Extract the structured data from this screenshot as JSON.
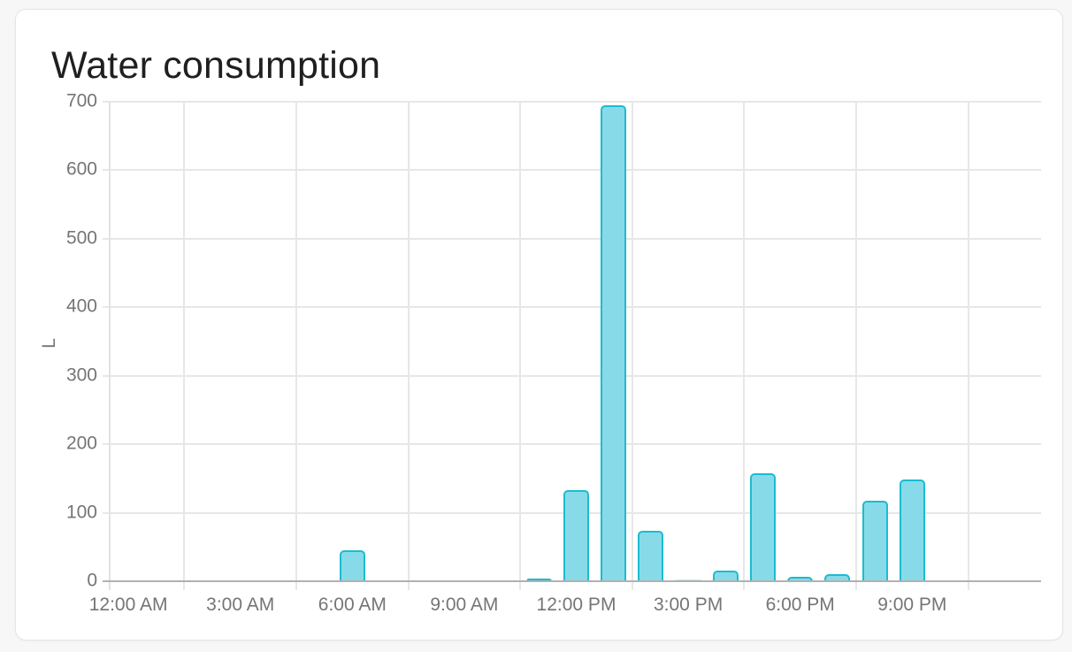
{
  "page": {
    "background": "#f7f7f7"
  },
  "card": {
    "title": "Water consumption"
  },
  "chart_data": {
    "type": "bar",
    "title": "Water consumption",
    "xlabel": "",
    "ylabel": "L",
    "unit": "L",
    "ylim": [
      0,
      700
    ],
    "y_ticks": [
      0,
      100,
      200,
      300,
      400,
      500,
      600,
      700
    ],
    "x_ticks": [
      {
        "hour": 0,
        "label": "12:00 AM"
      },
      {
        "hour": 3,
        "label": "3:00 AM"
      },
      {
        "hour": 6,
        "label": "6:00 AM"
      },
      {
        "hour": 9,
        "label": "9:00 AM"
      },
      {
        "hour": 12,
        "label": "12:00 PM"
      },
      {
        "hour": 15,
        "label": "3:00 PM"
      },
      {
        "hour": 18,
        "label": "6:00 PM"
      },
      {
        "hour": 21,
        "label": "9:00 PM"
      }
    ],
    "gridline_hours": [
      2,
      5,
      8,
      11,
      14,
      17,
      20,
      23
    ],
    "grid": true,
    "legend": "none",
    "categories": [
      0,
      1,
      2,
      3,
      4,
      5,
      6,
      7,
      8,
      9,
      10,
      11,
      12,
      13,
      14,
      15,
      16,
      17,
      18,
      19,
      20,
      21,
      22,
      23
    ],
    "series": [
      {
        "name": "Water consumption",
        "unit": "L",
        "values": [
          0,
          0,
          0,
          0,
          0,
          0,
          45,
          0,
          0,
          0,
          0,
          4,
          133,
          695,
          73,
          1.5,
          16,
          157,
          6,
          10,
          118,
          149,
          0,
          0
        ]
      }
    ],
    "colors": {
      "bar_fill": "#87dbe8",
      "bar_border": "#1bbcd1",
      "tiny_bar_fill": "#c5ecf3",
      "gridline": "#e7e7e7",
      "axis_baseline": "#b1b1b1",
      "tick_label": "#757575",
      "title_text": "#1f1f1f"
    }
  }
}
